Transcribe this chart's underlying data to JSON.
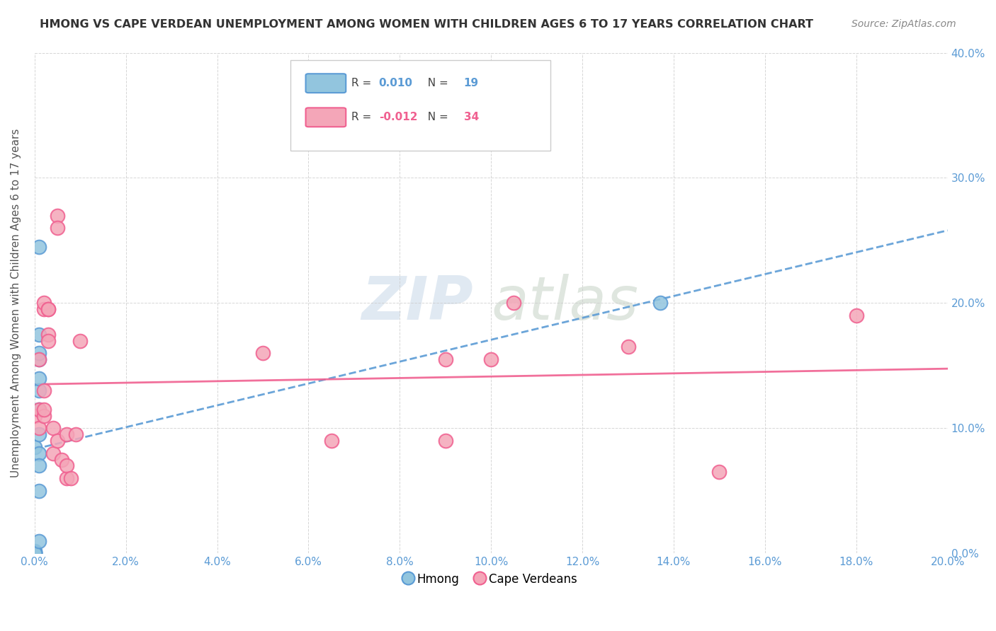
{
  "title": "HMONG VS CAPE VERDEAN UNEMPLOYMENT AMONG WOMEN WITH CHILDREN AGES 6 TO 17 YEARS CORRELATION CHART",
  "source": "Source: ZipAtlas.com",
  "ylabel": "Unemployment Among Women with Children Ages 6 to 17 years",
  "xlim": [
    0.0,
    0.2
  ],
  "ylim": [
    0.0,
    0.4
  ],
  "xtick_labels": [
    "0.0%",
    "2.0%",
    "4.0%",
    "6.0%",
    "8.0%",
    "10.0%",
    "12.0%",
    "14.0%",
    "16.0%",
    "18.0%",
    "20.0%"
  ],
  "xtick_vals": [
    0.0,
    0.02,
    0.04,
    0.06,
    0.08,
    0.1,
    0.12,
    0.14,
    0.16,
    0.18,
    0.2
  ],
  "ytick_labels": [
    "0.0%",
    "10.0%",
    "20.0%",
    "30.0%",
    "40.0%"
  ],
  "ytick_vals": [
    0.0,
    0.1,
    0.2,
    0.3,
    0.4
  ],
  "hmong_R": 0.01,
  "hmong_N": 19,
  "capeverdean_R": -0.012,
  "capeverdean_N": 34,
  "hmong_color": "#92c5de",
  "capeverdean_color": "#f4a6b8",
  "hmong_trend_color": "#5b9bd5",
  "capeverdean_trend_color": "#f06090",
  "watermark_zip": "ZIP",
  "watermark_atlas": "atlas",
  "background_color": "#ffffff",
  "grid_color": "#cccccc",
  "hmong_points": [
    [
      0.0,
      0.001
    ],
    [
      0.0,
      0.002
    ],
    [
      0.0,
      0.001
    ],
    [
      0.0,
      0.0
    ],
    [
      0.0,
      0.0
    ],
    [
      0.0,
      0.085
    ],
    [
      0.001,
      0.13
    ],
    [
      0.001,
      0.155
    ],
    [
      0.001,
      0.14
    ],
    [
      0.001,
      0.16
    ],
    [
      0.001,
      0.175
    ],
    [
      0.001,
      0.115
    ],
    [
      0.001,
      0.095
    ],
    [
      0.001,
      0.08
    ],
    [
      0.001,
      0.07
    ],
    [
      0.001,
      0.05
    ],
    [
      0.001,
      0.01
    ],
    [
      0.001,
      0.245
    ],
    [
      0.137,
      0.2
    ]
  ],
  "capeverdean_points": [
    [
      0.0,
      0.11
    ],
    [
      0.001,
      0.1
    ],
    [
      0.001,
      0.115
    ],
    [
      0.001,
      0.155
    ],
    [
      0.002,
      0.13
    ],
    [
      0.002,
      0.11
    ],
    [
      0.002,
      0.115
    ],
    [
      0.002,
      0.195
    ],
    [
      0.002,
      0.2
    ],
    [
      0.003,
      0.195
    ],
    [
      0.003,
      0.195
    ],
    [
      0.003,
      0.175
    ],
    [
      0.003,
      0.17
    ],
    [
      0.004,
      0.1
    ],
    [
      0.004,
      0.08
    ],
    [
      0.005,
      0.27
    ],
    [
      0.005,
      0.26
    ],
    [
      0.005,
      0.09
    ],
    [
      0.006,
      0.075
    ],
    [
      0.007,
      0.06
    ],
    [
      0.007,
      0.07
    ],
    [
      0.007,
      0.095
    ],
    [
      0.008,
      0.06
    ],
    [
      0.009,
      0.095
    ],
    [
      0.01,
      0.17
    ],
    [
      0.05,
      0.16
    ],
    [
      0.065,
      0.09
    ],
    [
      0.09,
      0.09
    ],
    [
      0.09,
      0.155
    ],
    [
      0.1,
      0.155
    ],
    [
      0.105,
      0.2
    ],
    [
      0.13,
      0.165
    ],
    [
      0.15,
      0.065
    ],
    [
      0.18,
      0.19
    ]
  ]
}
